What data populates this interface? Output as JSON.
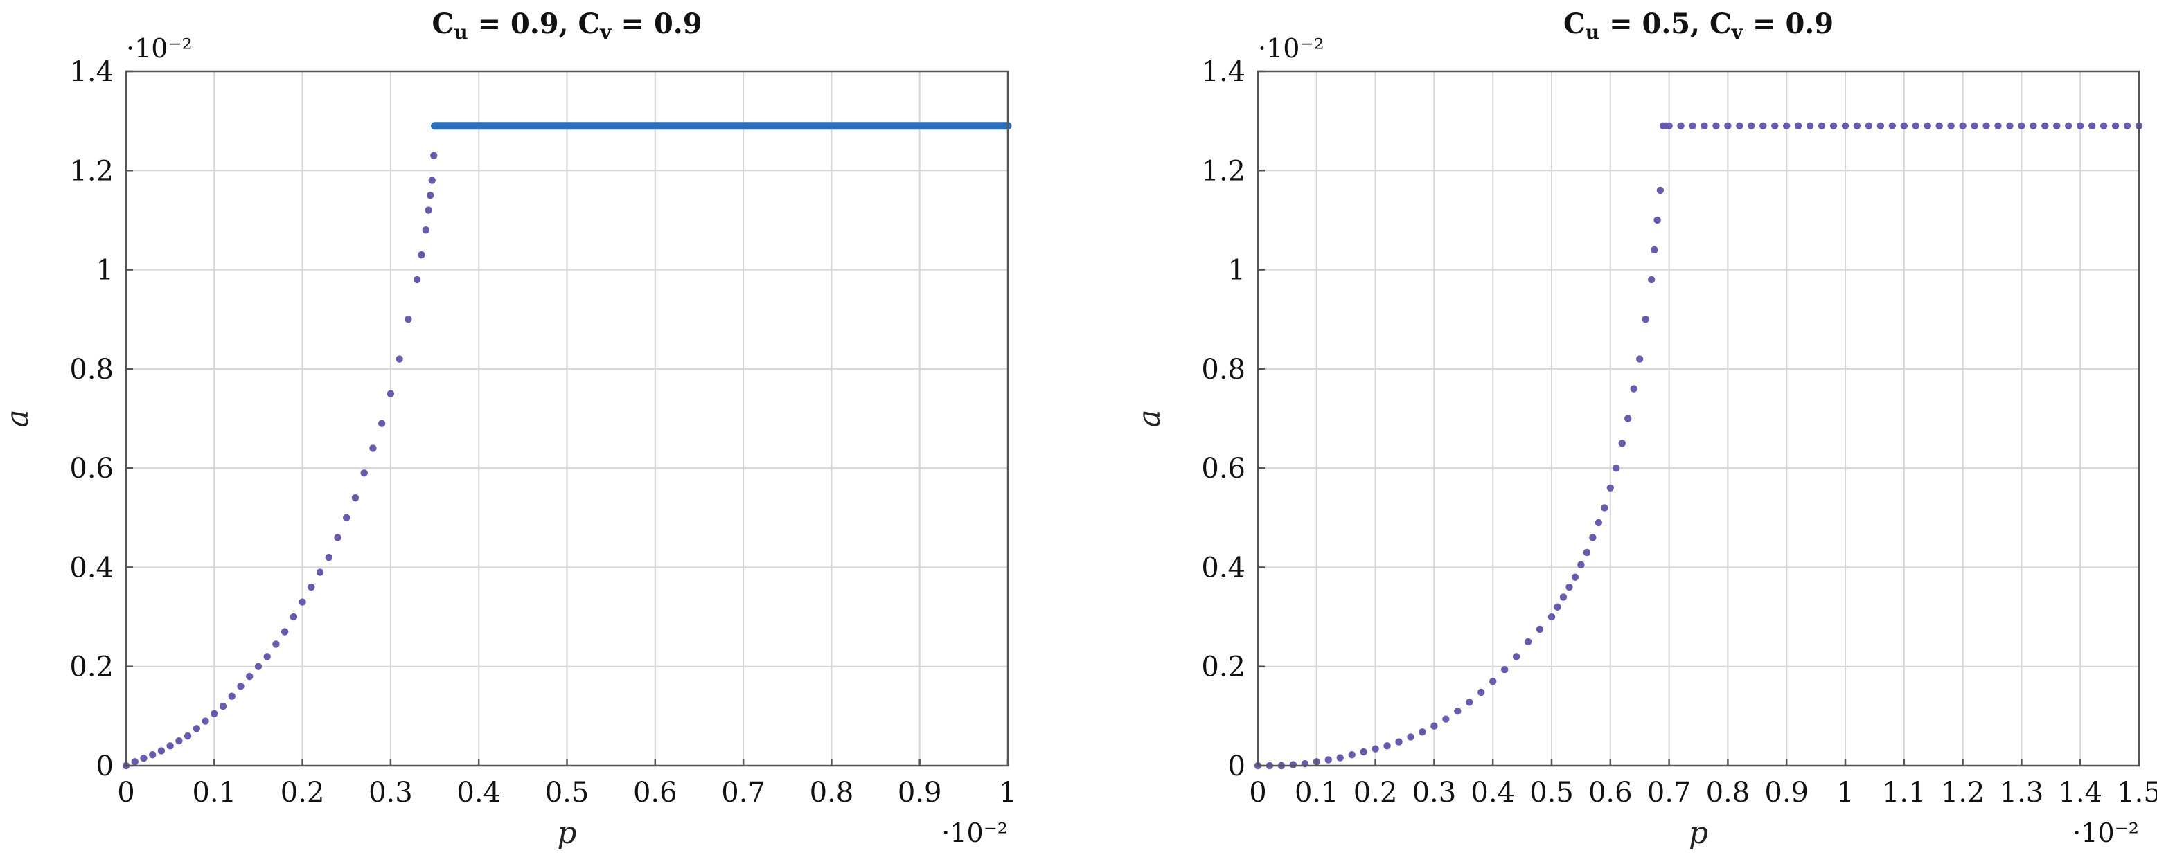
{
  "chart_data": [
    {
      "type": "scatter",
      "title": "C_u = 0.9, C_v = 0.9",
      "title_parts": {
        "c1": "C",
        "s1": "u",
        "eq1": " = 0.9, ",
        "c2": "C",
        "s2": "v",
        "eq2": " = 0.9"
      },
      "xlabel": "p",
      "ylabel": "a",
      "x_multiplier": "·10⁻²",
      "y_multiplier": "·10⁻²",
      "xlim": [
        0,
        1
      ],
      "ylim": [
        0,
        1.4
      ],
      "x_ticks": [
        0,
        0.1,
        0.2,
        0.3,
        0.4,
        0.5,
        0.6,
        0.7,
        0.8,
        0.9,
        1
      ],
      "x_tick_labels": [
        "0",
        "0.1",
        "0.2",
        "0.3",
        "0.4",
        "0.5",
        "0.6",
        "0.7",
        "0.8",
        "0.9",
        "1"
      ],
      "y_ticks": [
        0,
        0.2,
        0.4,
        0.6,
        0.8,
        1,
        1.2,
        1.4
      ],
      "y_tick_labels": [
        "0",
        "0.2",
        "0.4",
        "0.6",
        "0.8",
        "1",
        "1.2",
        "1.4"
      ],
      "grid": true,
      "plateau": 1.29,
      "series": [
        {
          "style": "dots",
          "color": "#6a5aae",
          "x": [
            0,
            0.01,
            0.02,
            0.03,
            0.04,
            0.05,
            0.06,
            0.07,
            0.08,
            0.09,
            0.1,
            0.11,
            0.12,
            0.13,
            0.14,
            0.15,
            0.16,
            0.17,
            0.18,
            0.19,
            0.2,
            0.21,
            0.22,
            0.23,
            0.24,
            0.25,
            0.26,
            0.27,
            0.28,
            0.29,
            0.3,
            0.31,
            0.32,
            0.33,
            0.335,
            0.34,
            0.343,
            0.345,
            0.347,
            0.349
          ],
          "y": [
            0,
            0.008,
            0.015,
            0.022,
            0.03,
            0.04,
            0.05,
            0.06,
            0.075,
            0.09,
            0.105,
            0.12,
            0.14,
            0.16,
            0.18,
            0.2,
            0.22,
            0.245,
            0.27,
            0.3,
            0.33,
            0.36,
            0.39,
            0.42,
            0.46,
            0.5,
            0.54,
            0.59,
            0.64,
            0.69,
            0.75,
            0.82,
            0.9,
            0.98,
            1.03,
            1.08,
            1.12,
            1.15,
            1.18,
            1.23
          ]
        },
        {
          "style": "dense",
          "color": "#2a6fba",
          "x": [
            0.35,
            1
          ],
          "y": [
            1.29,
            1.29
          ]
        }
      ]
    },
    {
      "type": "scatter",
      "title": "C_u = 0.5, C_v = 0.9",
      "title_parts": {
        "c1": "C",
        "s1": "u",
        "eq1": " = 0.5, ",
        "c2": "C",
        "s2": "v",
        "eq2": " = 0.9"
      },
      "xlabel": "p",
      "ylabel": "a",
      "x_multiplier": "·10⁻²",
      "y_multiplier": "·10⁻²",
      "xlim": [
        0,
        1.5
      ],
      "ylim": [
        0,
        1.4
      ],
      "x_ticks": [
        0,
        0.1,
        0.2,
        0.3,
        0.4,
        0.5,
        0.6,
        0.7,
        0.8,
        0.9,
        1,
        1.1,
        1.2,
        1.3,
        1.4,
        1.5
      ],
      "x_tick_labels": [
        "0",
        "0.1",
        "0.2",
        "0.3",
        "0.4",
        "0.5",
        "0.6",
        "0.7",
        "0.8",
        "0.9",
        "1",
        "1.1",
        "1.2",
        "1.3",
        "1.4",
        "1.5"
      ],
      "y_ticks": [
        0,
        0.2,
        0.4,
        0.6,
        0.8,
        1,
        1.2,
        1.4
      ],
      "y_tick_labels": [
        "0",
        "0.2",
        "0.4",
        "0.6",
        "0.8",
        "1",
        "1.2",
        "1.4"
      ],
      "grid": true,
      "plateau": 1.29,
      "series": [
        {
          "style": "dots",
          "color": "#6a5aae",
          "x": [
            0,
            0.02,
            0.04,
            0.06,
            0.08,
            0.1,
            0.12,
            0.14,
            0.16,
            0.18,
            0.2,
            0.22,
            0.24,
            0.26,
            0.28,
            0.3,
            0.32,
            0.34,
            0.36,
            0.38,
            0.4,
            0.42,
            0.44,
            0.46,
            0.48,
            0.5,
            0.51,
            0.52,
            0.53,
            0.54,
            0.55,
            0.56,
            0.57,
            0.58,
            0.59,
            0.6,
            0.61,
            0.62,
            0.63,
            0.64,
            0.65,
            0.66,
            0.67,
            0.675,
            0.68,
            0.685,
            0.69,
            0.695,
            0.7,
            0.72,
            0.74,
            0.76,
            0.78,
            0.8,
            0.82,
            0.84,
            0.86,
            0.88,
            0.9,
            0.92,
            0.94,
            0.96,
            0.98,
            1,
            1.02,
            1.04,
            1.06,
            1.08,
            1.1,
            1.12,
            1.14,
            1.16,
            1.18,
            1.2,
            1.22,
            1.24,
            1.26,
            1.28,
            1.3,
            1.32,
            1.34,
            1.36,
            1.38,
            1.4,
            1.42,
            1.44,
            1.46,
            1.48,
            1.5
          ],
          "y": [
            0,
            0,
            0,
            0.002,
            0.004,
            0.008,
            0.012,
            0.016,
            0.022,
            0.028,
            0.034,
            0.04,
            0.048,
            0.058,
            0.068,
            0.08,
            0.094,
            0.11,
            0.128,
            0.148,
            0.17,
            0.194,
            0.22,
            0.25,
            0.275,
            0.3,
            0.32,
            0.34,
            0.36,
            0.38,
            0.405,
            0.43,
            0.46,
            0.49,
            0.52,
            0.56,
            0.6,
            0.65,
            0.7,
            0.76,
            0.82,
            0.9,
            0.98,
            1.04,
            1.1,
            1.16,
            1.29,
            1.29,
            1.29,
            1.29,
            1.29,
            1.29,
            1.29,
            1.29,
            1.29,
            1.29,
            1.29,
            1.29,
            1.29,
            1.29,
            1.29,
            1.29,
            1.29,
            1.29,
            1.29,
            1.29,
            1.29,
            1.29,
            1.29,
            1.29,
            1.29,
            1.29,
            1.29,
            1.29,
            1.29,
            1.29,
            1.29,
            1.29,
            1.29,
            1.29,
            1.29,
            1.29,
            1.29,
            1.29,
            1.29,
            1.29,
            1.29,
            1.29,
            1.29
          ]
        }
      ]
    }
  ]
}
